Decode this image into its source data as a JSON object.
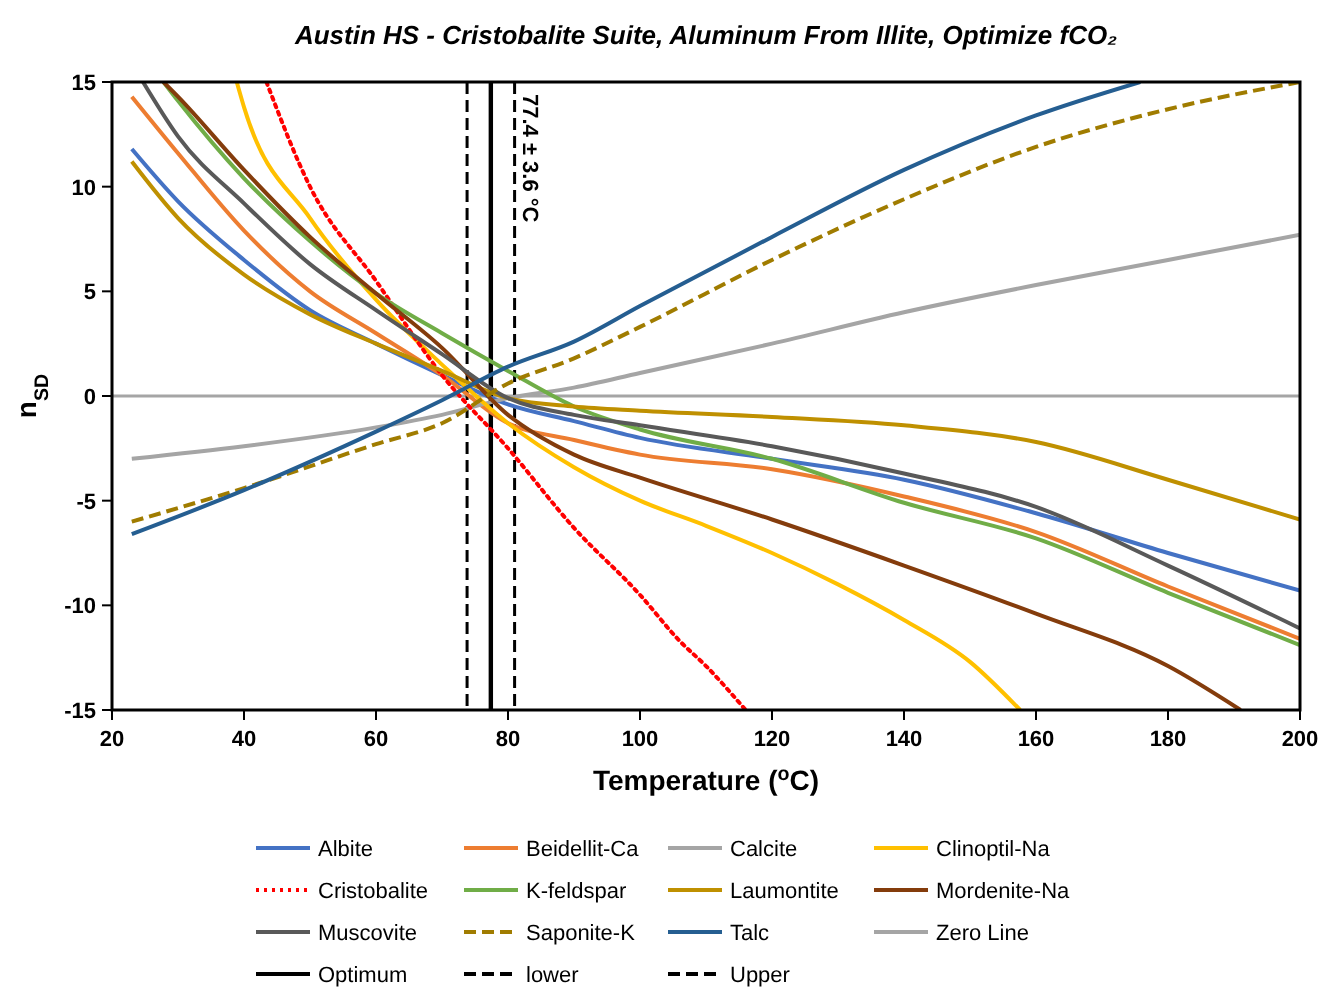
{
  "chart_data": {
    "type": "line",
    "title": "Austin HS - Cristobalite Suite, Aluminum From Illite, Optimize fCO₂",
    "xlabel": "Temperature ($^{o}$C)",
    "ylabel": "n$_{SD}$",
    "xlim": [
      20,
      200
    ],
    "ylim": [
      -15,
      15
    ],
    "xticks": [
      20,
      40,
      60,
      80,
      100,
      120,
      140,
      160,
      180,
      200
    ],
    "yticks": [
      -15,
      -10,
      -5,
      0,
      5,
      10,
      15
    ],
    "grid": false,
    "legend": "bottom",
    "marker": "none",
    "line_style": "solid",
    "series": [
      {
        "name": "Albite",
        "color": "#4472c4",
        "x": [
          23,
          30,
          40,
          50,
          60,
          70,
          80,
          90,
          100,
          120,
          140,
          160,
          180,
          200
        ],
        "values": [
          11.8,
          9.3,
          6.5,
          4.1,
          2.5,
          1.0,
          -0.4,
          -1.2,
          -2.0,
          -3.0,
          -4.0,
          -5.6,
          -7.5,
          -9.3
        ]
      },
      {
        "name": "Beidellit-Ca",
        "color": "#ed7d31",
        "x": [
          23,
          30,
          40,
          50,
          60,
          70,
          80,
          90,
          100,
          120,
          140,
          160,
          180,
          200
        ],
        "values": [
          14.3,
          11.6,
          7.9,
          5.0,
          3.0,
          1.0,
          -1.3,
          -2.1,
          -2.8,
          -3.5,
          -4.8,
          -6.5,
          -9.1,
          -11.6
        ]
      },
      {
        "name": "Calcite",
        "color": "#a5a5a5",
        "x": [
          23,
          40,
          60,
          70,
          80,
          90,
          100,
          120,
          140,
          160,
          180,
          200
        ],
        "values": [
          -3.0,
          -2.4,
          -1.5,
          -0.9,
          -0.1,
          0.4,
          1.1,
          2.5,
          4.0,
          5.3,
          6.5,
          7.7
        ]
      },
      {
        "name": "Clinoptil-Na",
        "color": "#ffc000",
        "x": [
          38.9,
          40,
          50,
          60,
          70,
          80,
          90,
          100,
          110,
          120,
          130,
          140,
          150,
          157.6
        ],
        "values": [
          15,
          13.8,
          8.5,
          4.6,
          1.5,
          -1.3,
          -3.4,
          -5.0,
          -6.2,
          -7.5,
          -9.0,
          -10.7,
          -12.7,
          -15
        ]
      },
      {
        "name": "Cristobalite",
        "color": "#ff0000",
        "line_style": "dotted",
        "x": [
          43.4,
          50,
          60,
          70,
          80,
          90,
          100,
          106,
          110,
          116
        ],
        "values": [
          15,
          10.0,
          5.5,
          1.0,
          -2.5,
          -6.3,
          -9.5,
          -11.7,
          -12.9,
          -15
        ]
      },
      {
        "name": "K-feldspar",
        "color": "#70ad47",
        "x": [
          27.8,
          30,
          40,
          50,
          60,
          70,
          80,
          90,
          100,
          120,
          140,
          160,
          180,
          200
        ],
        "values": [
          15,
          14.1,
          10.4,
          7.4,
          4.9,
          3.0,
          1.2,
          -0.5,
          -1.6,
          -3.0,
          -5.1,
          -6.8,
          -9.4,
          -11.9
        ]
      },
      {
        "name": "Laumontite",
        "color": "#bf9000",
        "x": [
          23,
          30,
          40,
          50,
          60,
          70,
          80,
          90,
          100,
          120,
          140,
          160,
          180,
          200
        ],
        "values": [
          11.2,
          8.5,
          5.8,
          3.9,
          2.5,
          1.2,
          -0.1,
          -0.5,
          -0.7,
          -1.0,
          -1.4,
          -2.2,
          -4.0,
          -5.9
        ]
      },
      {
        "name": "Mordenite-Na",
        "color": "#843c0c",
        "x": [
          27.8,
          30,
          40,
          50,
          60,
          70,
          80,
          90,
          100,
          120,
          140,
          160,
          180,
          191
        ],
        "values": [
          15,
          14.3,
          10.8,
          7.6,
          4.9,
          2.3,
          -0.9,
          -2.8,
          -3.9,
          -5.9,
          -8.1,
          -10.4,
          -12.9,
          -15
        ]
      },
      {
        "name": "Muscovite",
        "color": "#595959",
        "x": [
          24.7,
          30,
          40,
          50,
          60,
          70,
          80,
          90,
          100,
          120,
          140,
          160,
          180,
          200
        ],
        "values": [
          15,
          12.4,
          9.2,
          6.3,
          4.1,
          2.0,
          -0.1,
          -0.9,
          -1.4,
          -2.4,
          -3.7,
          -5.3,
          -8.1,
          -11.1
        ]
      },
      {
        "name": "Saponite-K",
        "color": "#a07c00",
        "line_style": "dashed",
        "x": [
          23,
          40,
          60,
          70,
          80,
          90,
          100,
          120,
          140,
          160,
          180,
          200
        ],
        "values": [
          -6.0,
          -4.4,
          -2.3,
          -1.3,
          0.6,
          1.8,
          3.3,
          6.5,
          9.4,
          11.9,
          13.7,
          15.0
        ]
      },
      {
        "name": "Talc",
        "color": "#255e91",
        "x": [
          23,
          40,
          60,
          70,
          80,
          90,
          100,
          120,
          140,
          160,
          175.8
        ],
        "values": [
          -6.6,
          -4.5,
          -1.7,
          -0.2,
          1.4,
          2.6,
          4.3,
          7.6,
          10.8,
          13.4,
          15
        ]
      }
    ],
    "ref_lines": [
      {
        "axis": "y",
        "value": 0,
        "label": "Zero Line",
        "color": "#a5a5a5",
        "line_style": "solid"
      },
      {
        "axis": "x",
        "value": 77.4,
        "label": "Optimum",
        "color": "#000000",
        "line_style": "solid"
      },
      {
        "axis": "x",
        "value": 73.8,
        "label": "lower",
        "color": "#000000",
        "line_style": "dashed"
      },
      {
        "axis": "x",
        "value": 81.0,
        "label": "Upper",
        "color": "#000000",
        "line_style": "dashed"
      }
    ],
    "annotations": [
      {
        "text": "77.4 ± 3.6 °C",
        "x": 77.4,
        "y": 15
      }
    ]
  }
}
